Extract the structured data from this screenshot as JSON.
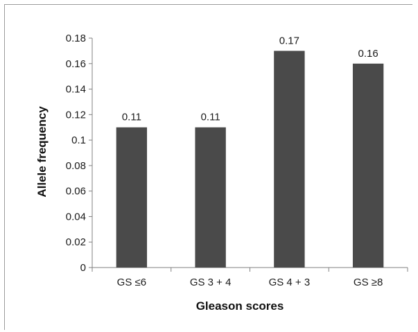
{
  "chart_data": {
    "type": "bar",
    "categories": [
      "GS ≤6",
      "GS 3 + 4",
      "GS 4 + 3",
      "GS ≥8"
    ],
    "values": [
      0.11,
      0.11,
      0.17,
      0.16
    ],
    "data_labels": [
      "0.11",
      "0.11",
      "0.17",
      "0.16"
    ],
    "title": "",
    "xlabel": "Gleason scores",
    "ylabel": "Allele frequency",
    "ylim": [
      0,
      0.18
    ],
    "yticks": [
      0,
      0.02,
      0.04,
      0.06,
      0.08,
      0.1,
      0.12,
      0.14,
      0.16,
      0.18
    ],
    "ytick_labels": [
      "0",
      "0.02",
      "0.04",
      "0.06",
      "0.08",
      "0.1",
      "0.12",
      "0.14",
      "0.16",
      "0.18"
    ],
    "grid": false,
    "legend": "none",
    "bar_color": "#4a4a4a"
  }
}
